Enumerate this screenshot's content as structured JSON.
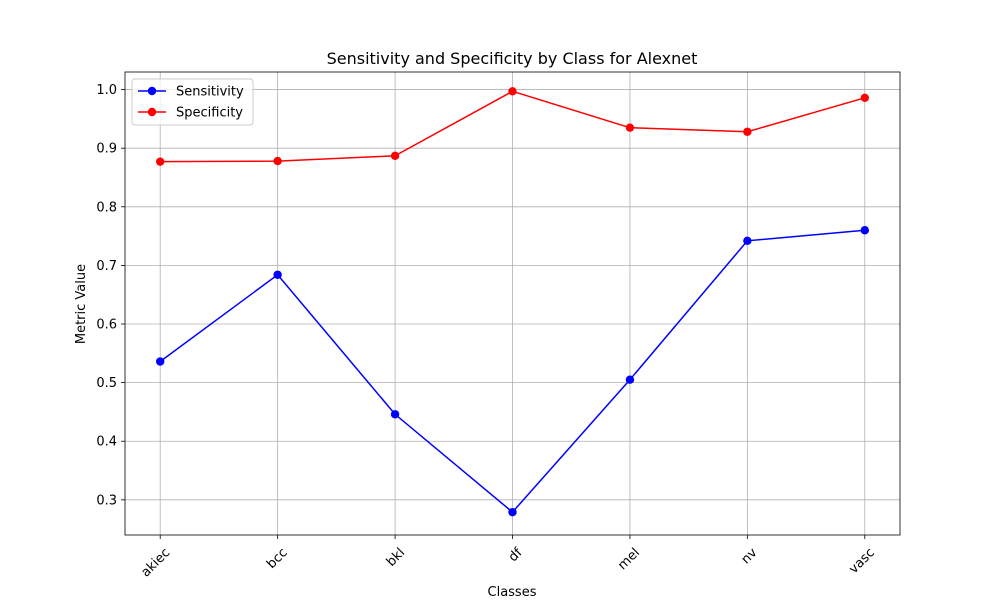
{
  "chart_data": {
    "type": "line",
    "title": "Sensitivity and Specificity by Class for Alexnet",
    "xlabel": "Classes",
    "ylabel": "Metric Value",
    "categories": [
      "akiec",
      "bcc",
      "bkl",
      "df",
      "mel",
      "nv",
      "vasc"
    ],
    "ylim": [
      0.24,
      1.03
    ],
    "yticks": [
      0.3,
      0.4,
      0.5,
      0.6,
      0.7,
      0.8,
      0.9,
      1.0
    ],
    "ytick_labels": [
      "0.3",
      "0.4",
      "0.5",
      "0.6",
      "0.7",
      "0.8",
      "0.9",
      "1.0"
    ],
    "grid": true,
    "legend_position": "top-left",
    "series": [
      {
        "name": "Sensitivity",
        "color": "#0000ff",
        "marker": "circle",
        "values": [
          0.536,
          0.684,
          0.446,
          0.279,
          0.505,
          0.742,
          0.76
        ]
      },
      {
        "name": "Specificity",
        "color": "#ff0000",
        "marker": "circle",
        "values": [
          0.877,
          0.878,
          0.887,
          0.997,
          0.935,
          0.928,
          0.986
        ]
      }
    ]
  }
}
